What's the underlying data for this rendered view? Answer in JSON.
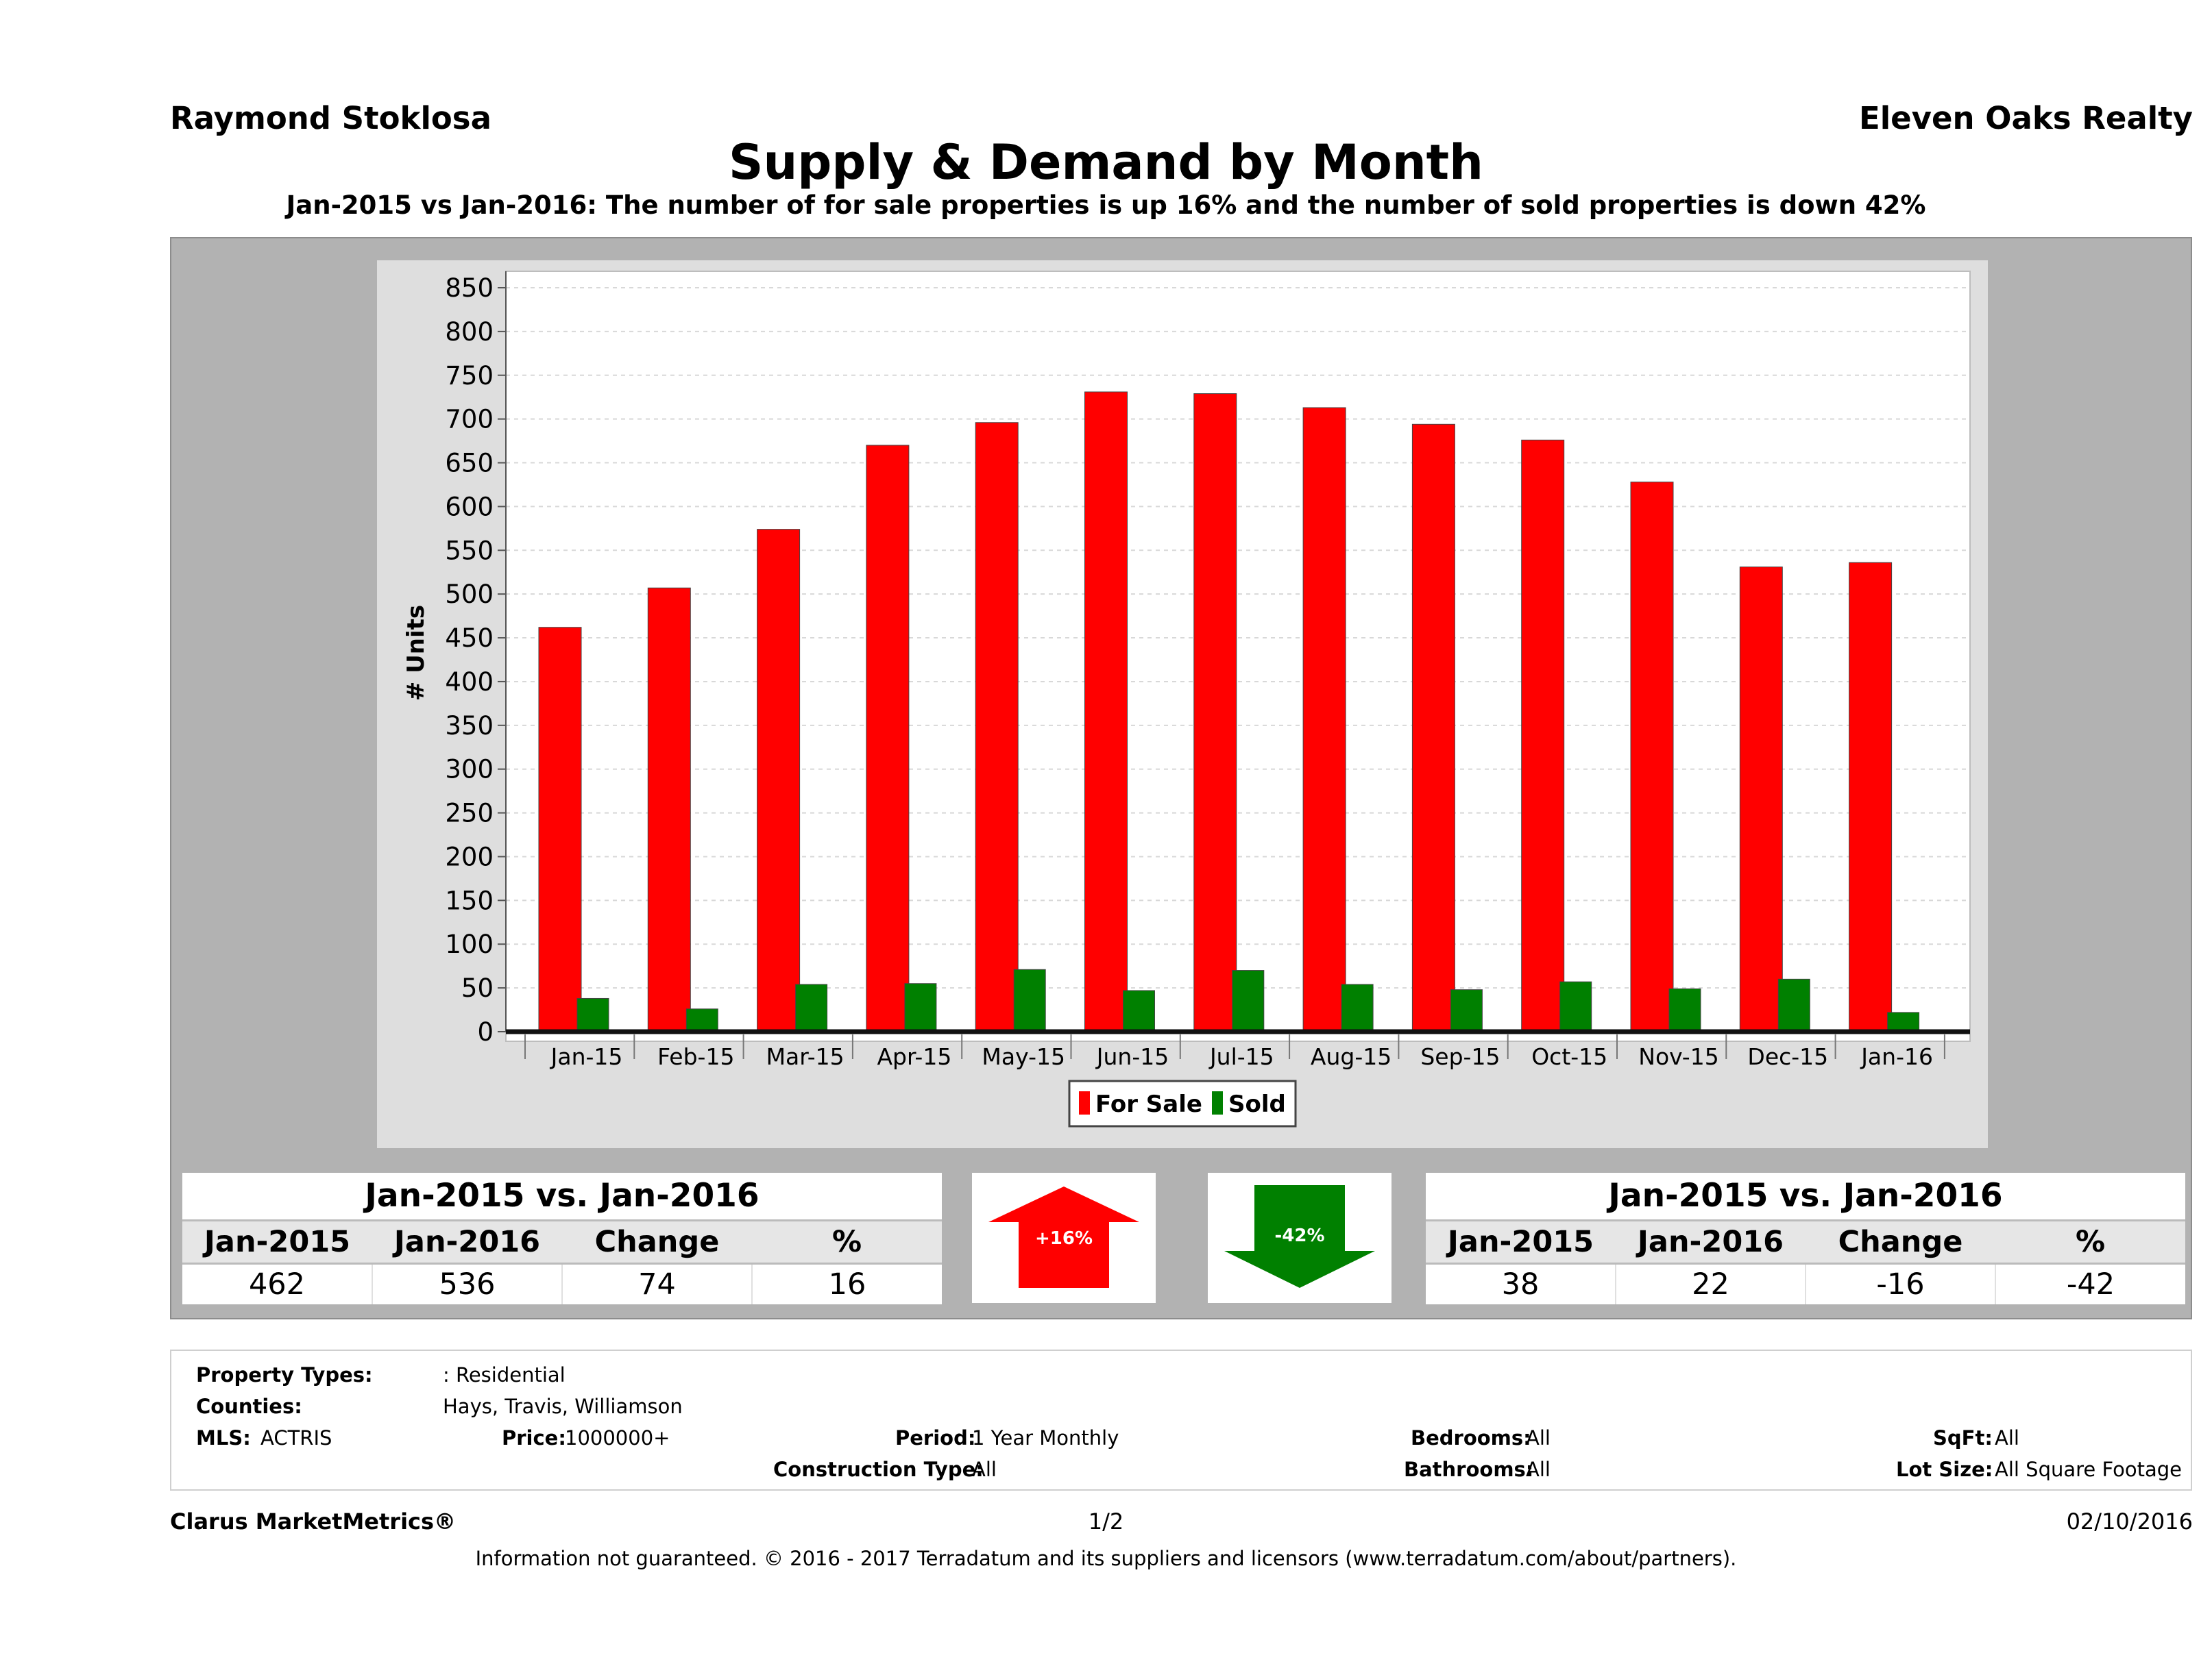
{
  "header": {
    "agent": "Raymond Stoklosa",
    "company": "Eleven Oaks Realty",
    "title": "Supply & Demand by Month",
    "subtitle": "Jan-2015 vs Jan-2016: The number of for sale properties is up 16% and the number of sold properties is down 42%"
  },
  "chart_data": {
    "type": "bar",
    "categories": [
      "Jan-15",
      "Feb-15",
      "Mar-15",
      "Apr-15",
      "May-15",
      "Jun-15",
      "Jul-15",
      "Aug-15",
      "Sep-15",
      "Oct-15",
      "Nov-15",
      "Dec-15",
      "Jan-16"
    ],
    "series": [
      {
        "name": "For Sale",
        "color": "#ff0000",
        "values": [
          462,
          507,
          574,
          670,
          696,
          731,
          729,
          713,
          694,
          676,
          628,
          531,
          536
        ]
      },
      {
        "name": "Sold",
        "color": "#008000",
        "values": [
          38,
          26,
          54,
          55,
          71,
          47,
          70,
          54,
          48,
          57,
          49,
          60,
          22
        ]
      }
    ],
    "ylabel": "# Units",
    "xlabel": "",
    "ylim": [
      0,
      850
    ],
    "yticks": [
      0,
      50,
      100,
      150,
      200,
      250,
      300,
      350,
      400,
      450,
      500,
      550,
      600,
      650,
      700,
      750,
      800,
      850
    ],
    "grid": true,
    "legend": "bottom-center"
  },
  "for_sale_stats": {
    "title": "Jan-2015 vs. Jan-2016",
    "headers": [
      "Jan-2015",
      "Jan-2016",
      "Change",
      "%"
    ],
    "values": [
      "462",
      "536",
      "74",
      "16"
    ],
    "arrow_label": "+16%",
    "arrow_color": "#ff0000"
  },
  "sold_stats": {
    "title": "Jan-2015 vs. Jan-2016",
    "headers": [
      "Jan-2015",
      "Jan-2016",
      "Change",
      "%"
    ],
    "values": [
      "38",
      "22",
      "-16",
      "-42"
    ],
    "arrow_label": "-42%",
    "arrow_color": "#008000"
  },
  "criteria": {
    "property_types_label": "Property Types:",
    "property_types_value": ": Residential",
    "counties_label": "Counties:",
    "counties_value": "Hays, Travis, Williamson",
    "mls_label": "MLS:",
    "mls_value": "ACTRIS",
    "price_label": "Price:",
    "price_value": "1000000+",
    "period_label": "Period:",
    "period_value": "1 Year Monthly",
    "construction_label": "Construction Type:",
    "construction_value": "All",
    "bedrooms_label": "Bedrooms:",
    "bedrooms_value": "All",
    "bathrooms_label": "Bathrooms:",
    "bathrooms_value": "All",
    "sqft_label": "SqFt:",
    "sqft_value": "All",
    "lot_label": "Lot Size:",
    "lot_value": "All Square Footage"
  },
  "footer": {
    "brand": "Clarus MarketMetrics®",
    "page": "1/2",
    "date": "02/10/2016",
    "disclaimer": "Information not guaranteed. © 2016 - 2017 Terradatum and its suppliers and licensors (www.terradatum.com/about/partners)."
  }
}
